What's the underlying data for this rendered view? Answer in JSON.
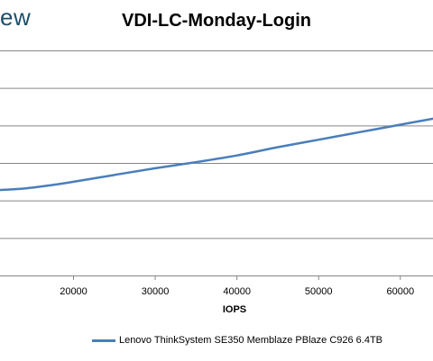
{
  "brand": {
    "text": "ew"
  },
  "chart_data": {
    "type": "line",
    "title": "VDI-LC-Monday-Login",
    "xlabel": "IOPS",
    "ylabel": "",
    "xlim": [
      11000,
      64000
    ],
    "ylim": [
      0,
      6
    ],
    "x_ticks": [
      20000,
      30000,
      40000,
      50000,
      60000
    ],
    "y_gridlines": [
      1,
      2,
      3,
      4,
      5
    ],
    "grid": "horizontal",
    "legend_position": "bottom",
    "series": [
      {
        "name": "Lenovo ThinkSystem SE350 Memblaze PBlaze C926 6.4TB",
        "color": "#4a7ebb",
        "x": [
          11000,
          14000,
          17000,
          20000,
          25000,
          30000,
          35000,
          40000,
          45000,
          50000,
          55000,
          60000,
          64000
        ],
        "y": [
          2.28,
          2.32,
          2.4,
          2.5,
          2.68,
          2.86,
          3.02,
          3.2,
          3.42,
          3.62,
          3.82,
          4.02,
          4.18
        ]
      }
    ]
  }
}
